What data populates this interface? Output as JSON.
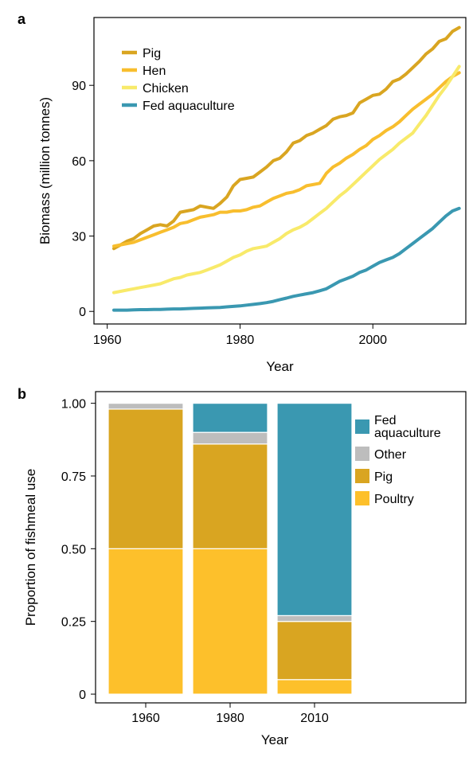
{
  "panel_a_label": "a",
  "panel_b_label": "b",
  "colors": {
    "pig": "#D9A521",
    "hen": "#F8BE2E",
    "chicken": "#F8EA6A",
    "fed_aquaculture": "#3A98B1",
    "other": "#BDBDBD",
    "poultry": "#FDC02B"
  },
  "chart_data": [
    {
      "type": "line",
      "xlabel": "Year",
      "ylabel": "Biomass (million tonnes)",
      "xlim": [
        1958,
        2014
      ],
      "ylim": [
        -5,
        117
      ],
      "xticks": [
        1960,
        1980,
        2000
      ],
      "yticks": [
        0,
        30,
        60,
        90
      ],
      "legend_position": "top-left",
      "series": [
        {
          "name": "Pig",
          "color": "#D9A521",
          "x": [
            1961,
            1962,
            1963,
            1964,
            1965,
            1966,
            1967,
            1968,
            1969,
            1970,
            1971,
            1972,
            1973,
            1974,
            1975,
            1976,
            1977,
            1978,
            1979,
            1980,
            1981,
            1982,
            1983,
            1984,
            1985,
            1986,
            1987,
            1988,
            1989,
            1990,
            1991,
            1992,
            1993,
            1994,
            1995,
            1996,
            1997,
            1998,
            1999,
            2000,
            2001,
            2002,
            2003,
            2004,
            2005,
            2006,
            2007,
            2008,
            2009,
            2010,
            2011,
            2012,
            2013
          ],
          "y": [
            25,
            26.5,
            28,
            29,
            31,
            32.5,
            34,
            34.5,
            34,
            36,
            39.5,
            40,
            40.5,
            42,
            41.5,
            41,
            43,
            45.5,
            50,
            52.5,
            53,
            53.5,
            55.5,
            57.5,
            60,
            61,
            63.5,
            67,
            68,
            70,
            71,
            72.5,
            74,
            76.5,
            77.5,
            78,
            79,
            83,
            84.5,
            86,
            86.5,
            88.5,
            91.5,
            92.5,
            94.5,
            97,
            99.5,
            102.5,
            104.5,
            107.5,
            108.5,
            111.5,
            113
          ]
        },
        {
          "name": "Hen",
          "color": "#F8BE2E",
          "x": [
            1961,
            1962,
            1963,
            1964,
            1965,
            1966,
            1967,
            1968,
            1969,
            1970,
            1971,
            1972,
            1973,
            1974,
            1975,
            1976,
            1977,
            1978,
            1979,
            1980,
            1981,
            1982,
            1983,
            1984,
            1985,
            1986,
            1987,
            1988,
            1989,
            1990,
            1991,
            1992,
            1993,
            1994,
            1995,
            1996,
            1997,
            1998,
            1999,
            2000,
            2001,
            2002,
            2003,
            2004,
            2005,
            2006,
            2007,
            2008,
            2009,
            2010,
            2011,
            2012,
            2013
          ],
          "y": [
            26,
            26.5,
            27,
            27.5,
            28.5,
            29.5,
            30.5,
            31.5,
            32.5,
            33.5,
            35,
            35.5,
            36.5,
            37.5,
            38,
            38.5,
            39.5,
            39.5,
            40,
            40,
            40.5,
            41.5,
            42,
            43.5,
            45,
            46,
            47,
            47.5,
            48.5,
            50,
            50.5,
            51,
            55,
            57.5,
            59,
            61,
            62.5,
            64.5,
            66,
            68.5,
            70,
            72,
            73.5,
            75.5,
            78,
            80.5,
            82.5,
            84.5,
            86.5,
            89,
            91.5,
            93.5,
            95
          ]
        },
        {
          "name": "Chicken",
          "color": "#F8EA6A",
          "x": [
            1961,
            1962,
            1963,
            1964,
            1965,
            1966,
            1967,
            1968,
            1969,
            1970,
            1971,
            1972,
            1973,
            1974,
            1975,
            1976,
            1977,
            1978,
            1979,
            1980,
            1981,
            1982,
            1983,
            1984,
            1985,
            1986,
            1987,
            1988,
            1989,
            1990,
            1991,
            1992,
            1993,
            1994,
            1995,
            1996,
            1997,
            1998,
            1999,
            2000,
            2001,
            2002,
            2003,
            2004,
            2005,
            2006,
            2007,
            2008,
            2009,
            2010,
            2011,
            2012,
            2013
          ],
          "y": [
            7.5,
            8,
            8.5,
            9,
            9.5,
            10,
            10.5,
            11,
            12,
            13,
            13.5,
            14.5,
            15,
            15.5,
            16.5,
            17.5,
            18.5,
            20,
            21.5,
            22.5,
            24,
            25,
            25.5,
            26,
            27.5,
            29,
            31,
            32.5,
            33.5,
            35,
            37,
            39,
            41,
            43.5,
            46,
            48,
            50.5,
            53,
            55.5,
            58,
            60.5,
            62.5,
            64.5,
            67,
            69,
            71,
            74.5,
            78,
            82,
            86,
            89.5,
            93.5,
            97.5
          ]
        },
        {
          "name": "Fed aquaculture",
          "color": "#3A98B1",
          "x": [
            1961,
            1962,
            1963,
            1964,
            1965,
            1966,
            1967,
            1968,
            1969,
            1970,
            1971,
            1972,
            1973,
            1974,
            1975,
            1976,
            1977,
            1978,
            1979,
            1980,
            1981,
            1982,
            1983,
            1984,
            1985,
            1986,
            1987,
            1988,
            1989,
            1990,
            1991,
            1992,
            1993,
            1994,
            1995,
            1996,
            1997,
            1998,
            1999,
            2000,
            2001,
            2002,
            2003,
            2004,
            2005,
            2006,
            2007,
            2008,
            2009,
            2010,
            2011,
            2012,
            2013
          ],
          "y": [
            0.5,
            0.5,
            0.5,
            0.6,
            0.7,
            0.7,
            0.8,
            0.8,
            0.9,
            1,
            1,
            1.1,
            1.2,
            1.3,
            1.4,
            1.5,
            1.6,
            1.8,
            2,
            2.2,
            2.5,
            2.8,
            3.1,
            3.5,
            4,
            4.7,
            5.3,
            6,
            6.5,
            7,
            7.5,
            8.2,
            9,
            10.5,
            12,
            13,
            14,
            15.5,
            16.5,
            18,
            19.5,
            20.5,
            21.5,
            23,
            25,
            27,
            29,
            31,
            33,
            35.5,
            38,
            40,
            41
          ]
        }
      ]
    },
    {
      "type": "bar",
      "stacked": true,
      "xlabel": "Year",
      "ylabel": "Proportion of fishmeal use",
      "ylim": [
        -0.03,
        1.04
      ],
      "yticks": [
        "0",
        "0.25",
        "0.50",
        "0.75",
        "1.00"
      ],
      "categories": [
        "1960",
        "1980",
        "2010"
      ],
      "legend_position": "right",
      "series": [
        {
          "name": "Poultry",
          "color": "#FDC02B",
          "values": [
            0.5,
            0.5,
            0.05
          ]
        },
        {
          "name": "Pig",
          "color": "#D9A521",
          "values": [
            0.48,
            0.36,
            0.2
          ]
        },
        {
          "name": "Other",
          "color": "#BDBDBD",
          "values": [
            0.02,
            0.04,
            0.02
          ]
        },
        {
          "name": "Fed aquaculture",
          "color": "#3A98B1",
          "values": [
            0.0,
            0.1,
            0.73
          ]
        }
      ],
      "legend": [
        {
          "lines": [
            "Fed",
            "aquaculture"
          ],
          "color": "#3A98B1"
        },
        {
          "lines": [
            "Other"
          ],
          "color": "#BDBDBD"
        },
        {
          "lines": [
            "Pig"
          ],
          "color": "#D9A521"
        },
        {
          "lines": [
            "Poultry"
          ],
          "color": "#FDC02B"
        }
      ]
    }
  ]
}
